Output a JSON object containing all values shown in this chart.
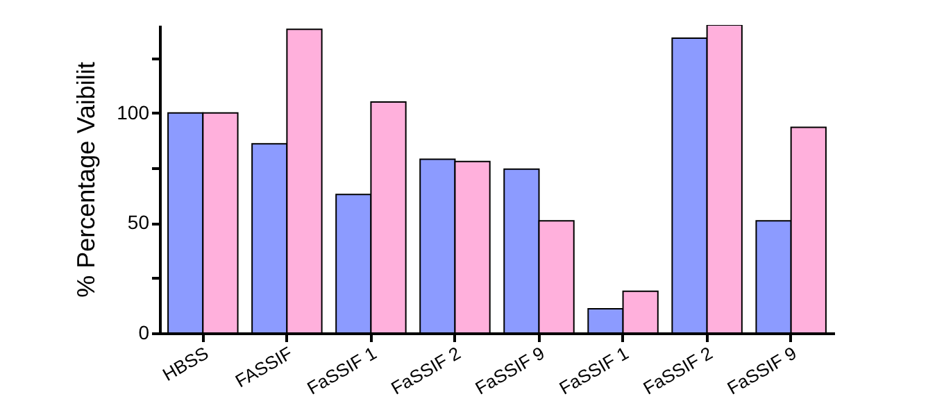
{
  "chart_data": {
    "type": "bar",
    "ylabel": "% Percentage Vaibilit",
    "categories": [
      "HBSS",
      "FASSIF",
      "FaSSIF 1",
      "FaSSIF 2",
      "FaSSIF 9",
      "FaSSIF 1",
      "FaSSIF 2",
      "FaSSIF 9"
    ],
    "series": [
      {
        "color": "#8c9bff",
        "values": [
          100,
          86,
          63,
          79,
          74.5,
          11,
          134,
          51
        ]
      },
      {
        "color": "#ffb0dc",
        "values": [
          100,
          138,
          105,
          78,
          51,
          19,
          140,
          93.5
        ]
      }
    ],
    "ylim": [
      0,
      140
    ],
    "yticks": [
      0,
      {
        "value": 25,
        "label": null
      },
      50,
      {
        "value": 75,
        "label": null
      },
      100,
      {
        "value": 125,
        "label": null
      }
    ],
    "grid": false
  }
}
